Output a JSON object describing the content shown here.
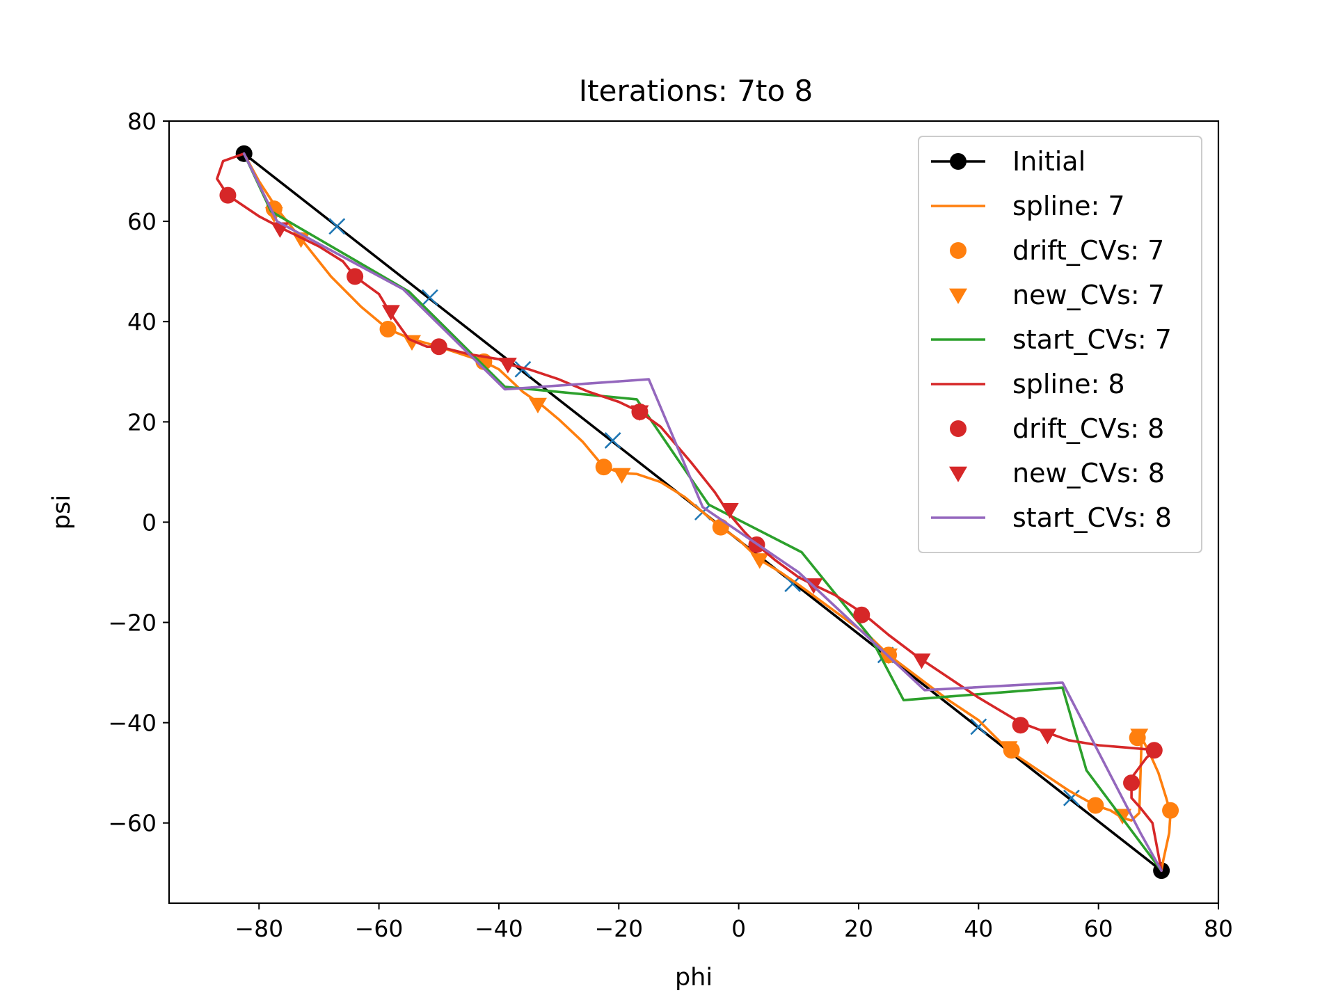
{
  "chart_data": {
    "type": "line",
    "title": "Iterations: 7to 8",
    "xlabel": "phi",
    "ylabel": "psi",
    "xlim": [
      -95,
      80
    ],
    "ylim": [
      -76,
      80
    ],
    "xticks": [
      -80,
      -60,
      -40,
      -20,
      0,
      20,
      40,
      60,
      80
    ],
    "yticks": [
      -60,
      -40,
      -20,
      0,
      20,
      40,
      60,
      80
    ],
    "xtick_labels": [
      "−80",
      "−60",
      "−40",
      "−20",
      "0",
      "20",
      "40",
      "60",
      "80"
    ],
    "ytick_labels": [
      "−60",
      "−40",
      "−20",
      "0",
      "20",
      "40",
      "60",
      "80"
    ],
    "grid": false,
    "legend_position": "top-right",
    "series": [
      {
        "name": "Initial",
        "style": "line-dot",
        "color": "#000000",
        "x": [
          -82.5,
          70.5
        ],
        "y": [
          73.5,
          -69.5
        ]
      },
      {
        "style": "cross",
        "color": "#1f77b4",
        "x": [
          -67,
          -51.5,
          -36,
          -21,
          -6,
          9,
          24.5,
          40,
          55.5
        ],
        "y": [
          59,
          44.8,
          30.5,
          16.3,
          2,
          -12.3,
          -26.5,
          -40.8,
          -55
        ]
      },
      {
        "name": "spline: 7",
        "style": "line",
        "color": "#ff7f0e",
        "x": [
          -82.5,
          -80,
          -77,
          -73,
          -68,
          -63,
          -58.5,
          -54.5,
          -50,
          -45,
          -42.5,
          -40,
          -36,
          -33,
          -30,
          -26,
          -22.5,
          -19.5,
          -17,
          -13,
          -9,
          -6,
          -3,
          0,
          3.5,
          7,
          10,
          14,
          18,
          22,
          25,
          30,
          35,
          40,
          45,
          50,
          55,
          59.5,
          62,
          64,
          65.5,
          66.8,
          67.2,
          68.5,
          70,
          71.3,
          72,
          71.8,
          70.8,
          70.5
        ],
        "y": [
          73.5,
          68,
          62.5,
          56.5,
          49,
          43,
          38.5,
          36.5,
          35,
          33,
          32,
          30.5,
          26,
          23.5,
          20.5,
          16,
          11,
          9.8,
          9.6,
          8,
          5,
          2,
          -1,
          -3.5,
          -7.5,
          -10,
          -12.5,
          -16,
          -19.5,
          -23,
          -26.5,
          -31,
          -35.5,
          -39.5,
          -45.5,
          -49.5,
          -53.5,
          -56.5,
          -57.5,
          -59,
          -59.5,
          -58,
          -43,
          -46,
          -50,
          -55,
          -58,
          -62,
          -67.5,
          -69.5
        ]
      },
      {
        "name": "drift_CVs: 7",
        "style": "dot",
        "color": "#ff7f0e",
        "x": [
          -77.5,
          -58.5,
          -42.5,
          -22.5,
          -3,
          25,
          45.5,
          59.5,
          66.5,
          72
        ],
        "y": [
          62.5,
          38.5,
          32,
          11,
          -1,
          -26.5,
          -45.5,
          -56.5,
          -43,
          -57.5
        ]
      },
      {
        "name": "new_CVs: 7",
        "style": "triangle-down",
        "color": "#ff7f0e",
        "x": [
          -77.5,
          -73,
          -54.5,
          -33.5,
          -19.5,
          3.5,
          25,
          45,
          64,
          66.8
        ],
        "y": [
          61.5,
          56.5,
          36,
          23.5,
          9.5,
          -7.5,
          -26.5,
          -45,
          -58.5,
          -42.5
        ]
      },
      {
        "name": "start_CVs: 7",
        "style": "line",
        "color": "#2ca02c",
        "x": [
          -82.5,
          -78,
          -55,
          -39,
          -17,
          -5,
          10.5,
          22,
          27.5,
          54,
          58,
          70.5
        ],
        "y": [
          73.5,
          62,
          46,
          27,
          24.5,
          3.5,
          -6,
          -23,
          -35.5,
          -33,
          -49.5,
          -69.5
        ]
      },
      {
        "name": "spline: 8",
        "style": "line",
        "color": "#d62728",
        "x": [
          -82.5,
          -86,
          -87,
          -85.2,
          -80,
          -76,
          -70,
          -66,
          -64,
          -60,
          -58,
          -55,
          -52,
          -50,
          -45,
          -40,
          -38.5,
          -35,
          -30,
          -25,
          -20,
          -16.5,
          -13,
          -8,
          -4,
          -1.5,
          1,
          3,
          6,
          10,
          12.5,
          16,
          20.5,
          25,
          30,
          35,
          40,
          47,
          51.5,
          55,
          60,
          65,
          68,
          69.3,
          68,
          65.5,
          65.5,
          67,
          69,
          70.5
        ],
        "y": [
          73.5,
          72,
          68.5,
          65.2,
          61,
          58.5,
          55,
          52,
          49,
          45.5,
          41.5,
          36.5,
          35,
          35,
          33.5,
          32.5,
          31.5,
          30.5,
          28.5,
          26,
          24,
          22,
          19,
          12,
          6,
          1.5,
          -2,
          -4.5,
          -7.5,
          -11,
          -12.5,
          -14.5,
          -18,
          -22.5,
          -27,
          -31,
          -35,
          -40,
          -42,
          -43.5,
          -44.5,
          -45,
          -45.3,
          -45.5,
          -47,
          -51,
          -55,
          -57,
          -60,
          -69.5
        ]
      },
      {
        "name": "drift_CVs: 8",
        "style": "dot",
        "color": "#d62728",
        "x": [
          -85.2,
          -64,
          -50,
          -16.5,
          3,
          20.5,
          47,
          65.5,
          69.3
        ],
        "y": [
          65.2,
          49,
          35,
          22,
          -4.5,
          -18.5,
          -40.5,
          -52,
          -45.5
        ]
      },
      {
        "name": "new_CVs: 8",
        "style": "triangle-down",
        "color": "#d62728",
        "x": [
          -76.5,
          -58,
          -38.5,
          -16.5,
          -1.5,
          12.5,
          30.5,
          51.5
        ],
        "y": [
          58.5,
          42,
          31.5,
          22,
          2.5,
          -12.5,
          -27.5,
          -42.5
        ]
      },
      {
        "name": "start_CVs: 8",
        "style": "line",
        "color": "#9467bd",
        "x": [
          -82.5,
          -77,
          -56,
          -39,
          -15,
          -6,
          10,
          31,
          54,
          67,
          70.5
        ],
        "y": [
          73.5,
          60,
          46.5,
          26.5,
          28.5,
          3,
          -10,
          -33.5,
          -32,
          -62,
          -69.5
        ]
      }
    ]
  }
}
